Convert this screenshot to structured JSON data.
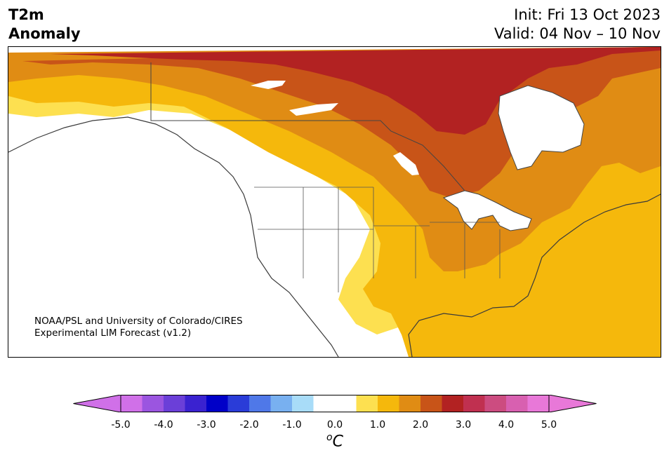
{
  "header": {
    "title_line1": "T2m",
    "title_line2": "Anomaly",
    "init": "Init: Fri 13 Oct 2023",
    "valid": "Valid: 04 Nov – 10 Nov"
  },
  "map": {
    "region": "North America",
    "credit_line1": "NOAA/PSL and University of Colorado/CIRES",
    "credit_line2": "Experimental LIM Forecast (v1.2)",
    "shading_levels": [
      {
        "range": "0.5–1.0",
        "color": "#fde050"
      },
      {
        "range": "1.0–1.5",
        "color": "#f5b80c"
      },
      {
        "range": "1.5–2.0",
        "color": "#e08c14"
      },
      {
        "range": "2.0–2.5",
        "color": "#c85418"
      },
      {
        "range": "2.5–3.0",
        "color": "#b22222"
      }
    ]
  },
  "colorbar": {
    "unit": "C",
    "unit_superscript": "o",
    "ticks": [
      "-5.0",
      "-4.0",
      "-3.0",
      "-2.0",
      "-1.0",
      "0.0",
      "1.0",
      "2.0",
      "3.0",
      "4.0",
      "5.0"
    ],
    "tick_values": [
      -5,
      -4,
      -3,
      -2,
      -1,
      0,
      1,
      2,
      3,
      4,
      5
    ],
    "bins": [
      -5,
      -4.5,
      -4,
      -3.5,
      -3,
      -2.5,
      -2,
      -1.5,
      -1,
      -0.5,
      0.5,
      1,
      1.5,
      2,
      2.5,
      3,
      3.5,
      4,
      4.5,
      5
    ],
    "colors": [
      "#d070e8",
      "#9b55e0",
      "#6b3fd8",
      "#3a22d0",
      "#0000c8",
      "#2a3cd8",
      "#4f78e8",
      "#78b0f0",
      "#a8dcf8",
      "#ffffff",
      "#fde050",
      "#f5b80c",
      "#e08c14",
      "#c85418",
      "#b22222",
      "#c03050",
      "#cc4c80",
      "#d860b0",
      "#e878d8"
    ],
    "extend_low_color": "#d070e8",
    "extend_high_color": "#e878d8"
  }
}
